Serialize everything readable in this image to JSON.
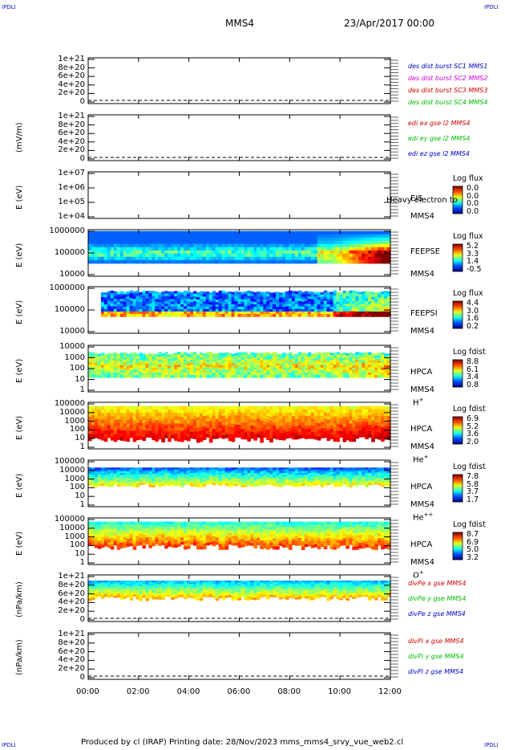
{
  "corners": {
    "tl": "IPDLI",
    "tr": "IPDLI",
    "bl": "IPDLI",
    "br": "IPDLI"
  },
  "header": {
    "spacecraft": "MMS4",
    "datetime": "23/Apr/2017 00:00"
  },
  "footer": {
    "text": "Produced by cl (IRAP)   Printing date: 28/Nov/2023   mms_mms4_srvy_vue_web2.cl"
  },
  "time_axis": {
    "ticks": [
      "00:00",
      "02:00",
      "04:00",
      "06:00",
      "08:00",
      "10:00",
      "12:00"
    ]
  },
  "panels": [
    {
      "id": "p1",
      "ylabel": "",
      "ticks": [
        "1e+21",
        "8e+20",
        "6e+20",
        "4e+20",
        "2e+20",
        "0"
      ],
      "legend": [
        {
          "text": "des dist burst SC1 MMS1",
          "color": "#0000cc"
        },
        {
          "text": "des dist burst SC2 MMS2",
          "color": "#cc00cc"
        },
        {
          "text": "des dist burst SC3 MMS3",
          "color": "#cc0000"
        },
        {
          "text": "des dist burst SC4 MMS4",
          "color": "#00bb00"
        }
      ]
    },
    {
      "id": "p2",
      "ylabel": "(mV/m)",
      "ticks": [
        "1e+21",
        "8e+20",
        "6e+20",
        "4e+20",
        "2e+20",
        "0"
      ],
      "legend": [
        {
          "text": "edi ex gse l2 MMS4",
          "color": "#cc0000"
        },
        {
          "text": "edi ey gse l2 MMS4",
          "color": "#00bb00"
        },
        {
          "text": "edi ez gse l2 MMS4",
          "color": "#0000cc"
        }
      ]
    },
    {
      "id": "p3",
      "ylabel": "E (eV)",
      "ticks": [
        "1e+07",
        "1e+06",
        "1e+05",
        "1e+04"
      ],
      "labels": [
        "EIS",
        "MMS4"
      ],
      "overlay": "Heavy electron to",
      "cb_title": "Log flux",
      "cb_ticks": [
        "0.0",
        "0.0",
        "0.0",
        "0.0"
      ]
    },
    {
      "id": "p4",
      "ylabel": "E (eV)",
      "ticks": [
        "1000000",
        "100000",
        "10000"
      ],
      "labels": [
        "FEEPSE",
        "MMS4"
      ],
      "cb_title": "Log flux",
      "cb_ticks": [
        "5.2",
        "3.3",
        "1.4",
        "-0.5"
      ]
    },
    {
      "id": "p5",
      "ylabel": "E (eV)",
      "ticks": [
        "1000000",
        "100000",
        "10000"
      ],
      "labels": [
        "FEEPSI",
        "MMS4"
      ],
      "cb_title": "Log flux",
      "cb_ticks": [
        "4.4",
        "3.0",
        "1.6",
        "0.2"
      ]
    },
    {
      "id": "p6",
      "ylabel": "E (eV)",
      "ticks": [
        "10000",
        "1000",
        "100",
        "10",
        "1"
      ],
      "labels": [
        "HPCA",
        "MMS4"
      ],
      "species": "H",
      "sup": "+",
      "cb_title": "Log fdist",
      "cb_ticks": [
        "8.8",
        "6.1",
        "3.4",
        "0.8"
      ]
    },
    {
      "id": "p7",
      "ylabel": "E (eV)",
      "ticks": [
        "100000",
        "10000",
        "1000",
        "100",
        "10",
        "1"
      ],
      "labels": [
        "HPCA",
        "MMS4"
      ],
      "species": "He",
      "sup": "+",
      "cb_title": "Log fdist",
      "cb_ticks": [
        "6.9",
        "5.2",
        "3.6",
        "2.0"
      ]
    },
    {
      "id": "p8",
      "ylabel": "E (eV)",
      "ticks": [
        "100000",
        "10000",
        "1000",
        "100",
        "10",
        "1"
      ],
      "labels": [
        "HPCA",
        "MMS4"
      ],
      "species": "He",
      "sup": "++",
      "cb_title": "Log fdist",
      "cb_ticks": [
        "7.8",
        "5.8",
        "3.7",
        "1.7"
      ]
    },
    {
      "id": "p9",
      "ylabel": "E (eV)",
      "ticks": [
        "100000",
        "10000",
        "1000",
        "100",
        "10",
        "1"
      ],
      "labels": [
        "HPCA",
        "MMS4"
      ],
      "species": "O",
      "sup": "+",
      "cb_title": "Log fdist",
      "cb_ticks": [
        "8.7",
        "6.9",
        "5.0",
        "3.2"
      ]
    },
    {
      "id": "p10",
      "ylabel": "(nPa/km)",
      "ticks": [
        "1e+21",
        "8e+20",
        "6e+20",
        "4e+20",
        "2e+20",
        "0"
      ],
      "legend": [
        {
          "text": "divPe x gse MMS4",
          "color": "#cc0000"
        },
        {
          "text": "divPe y gse MMS4",
          "color": "#00bb00"
        },
        {
          "text": "divPe z gse MMS4",
          "color": "#0000cc"
        }
      ]
    },
    {
      "id": "p11",
      "ylabel": "(nPa/km)",
      "ticks": [
        "1e+21",
        "8e+20",
        "6e+20",
        "4e+20",
        "2e+20",
        "0"
      ],
      "legend": [
        {
          "text": "divPi x gse MMS4",
          "color": "#cc0000"
        },
        {
          "text": "divPi y gse MMS4",
          "color": "#00bb00"
        },
        {
          "text": "divPi z gse MMS4",
          "color": "#0000cc"
        }
      ]
    }
  ],
  "chart_data": [
    {
      "type": "line",
      "panel": "p1",
      "x_range": [
        "00:00",
        "12:00"
      ],
      "ylim": [
        0,
        1e+21
      ],
      "series": []
    },
    {
      "type": "line",
      "panel": "p2",
      "x_range": [
        "00:00",
        "12:00"
      ],
      "ylim": [
        0,
        1e+21
      ],
      "series": []
    },
    {
      "type": "heatmap",
      "panel": "p3",
      "x_range": [
        "00:00",
        "12:00"
      ],
      "y_scale": "log",
      "ylim": [
        10000.0,
        10000000.0
      ],
      "zlim": [
        0.0,
        0.0
      ],
      "values": []
    },
    {
      "type": "heatmap",
      "panel": "p4",
      "x_range": [
        "00:00",
        "12:00"
      ],
      "y_scale": "log",
      "ylim": [
        10000.0,
        1000000.0
      ],
      "zlim": [
        -0.5,
        5.2
      ]
    },
    {
      "type": "heatmap",
      "panel": "p5",
      "x_range": [
        "00:00",
        "12:00"
      ],
      "y_scale": "log",
      "ylim": [
        10000.0,
        1000000.0
      ],
      "zlim": [
        0.2,
        4.4
      ]
    },
    {
      "type": "heatmap",
      "panel": "p6",
      "x_range": [
        "00:00",
        "12:00"
      ],
      "y_scale": "log",
      "ylim": [
        1,
        10000.0
      ],
      "zlim": [
        0.8,
        8.8
      ]
    },
    {
      "type": "heatmap",
      "panel": "p7",
      "x_range": [
        "00:00",
        "12:00"
      ],
      "y_scale": "log",
      "ylim": [
        1,
        100000.0
      ],
      "zlim": [
        2.0,
        6.9
      ]
    },
    {
      "type": "heatmap",
      "panel": "p8",
      "x_range": [
        "00:00",
        "12:00"
      ],
      "y_scale": "log",
      "ylim": [
        1,
        100000.0
      ],
      "zlim": [
        1.7,
        7.8
      ]
    },
    {
      "type": "heatmap",
      "panel": "p9",
      "x_range": [
        "00:00",
        "12:00"
      ],
      "y_scale": "log",
      "ylim": [
        1,
        100000.0
      ],
      "zlim": [
        3.2,
        8.7
      ]
    },
    {
      "type": "line",
      "panel": "p10",
      "x_range": [
        "00:00",
        "12:00"
      ],
      "ylim": [
        0,
        1e+21
      ],
      "series": []
    },
    {
      "type": "line",
      "panel": "p11",
      "x_range": [
        "00:00",
        "12:00"
      ],
      "ylim": [
        0,
        1e+21
      ],
      "series": []
    }
  ]
}
